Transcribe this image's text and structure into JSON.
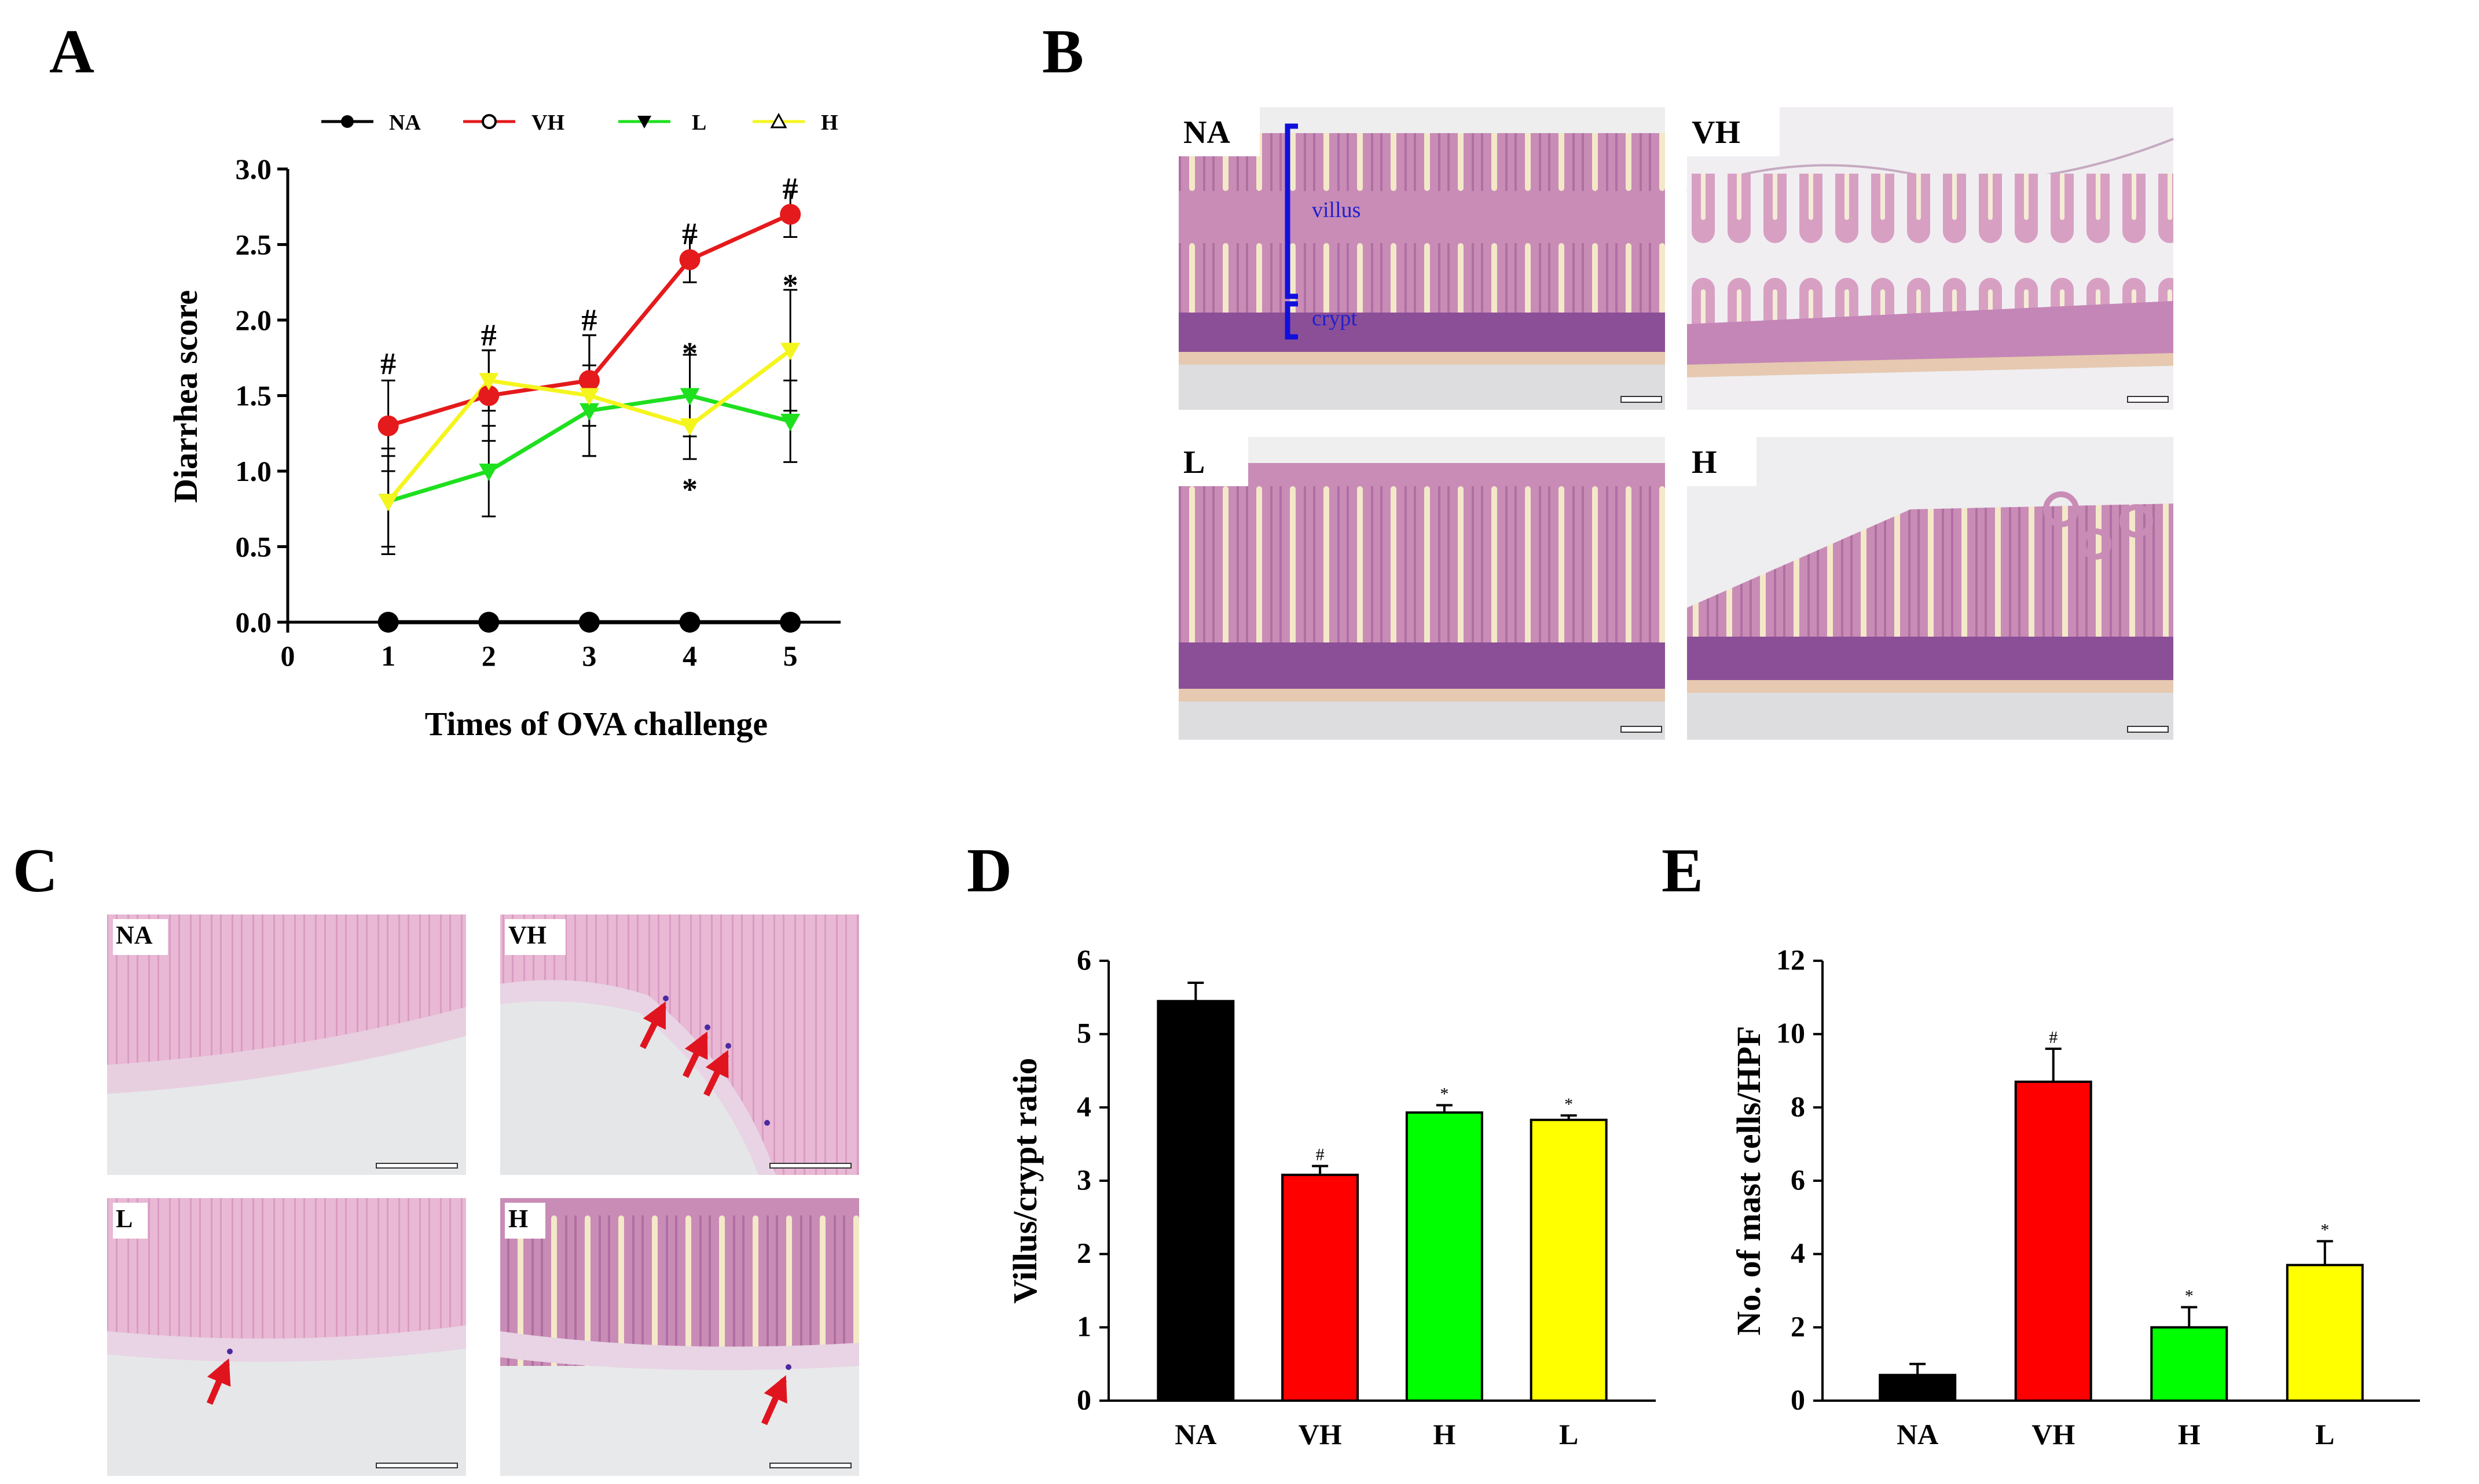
{
  "panel_labels": [
    "A",
    "B",
    "C",
    "D",
    "E"
  ],
  "colors": {
    "black": "#000000",
    "red": "#e41a1c",
    "green": "#1ee01e",
    "yellow": "#f5f51e",
    "bracket": "#1010dd",
    "arrow": "#e0141e",
    "annotation_text": "#2020cc"
  },
  "chart_data": [
    {
      "id": "A",
      "type": "line",
      "xlabel": "Times of OVA challenge",
      "ylabel": "Diarrhea score",
      "xlim": [
        0,
        5.5
      ],
      "ylim": [
        0,
        3.0
      ],
      "xticks": [
        "0",
        "1",
        "2",
        "3",
        "4",
        "5"
      ],
      "yticks": [
        "0.0",
        "0.5",
        "1.0",
        "1.5",
        "2.0",
        "2.5",
        "3.0"
      ],
      "x": [
        1,
        2,
        3,
        4,
        5
      ],
      "legend_position": "top",
      "series": [
        {
          "name": "NA",
          "color": "#000000",
          "marker": "filled-circle",
          "legend_marker": "filled-circle",
          "values": [
            0,
            0,
            0,
            0,
            0
          ],
          "errors": [
            0,
            0,
            0,
            0,
            0
          ]
        },
        {
          "name": "VH",
          "color": "#e41a1c",
          "marker": "filled-circle",
          "legend_marker": "open-circle",
          "values": [
            1.3,
            1.5,
            1.6,
            2.4,
            2.7
          ],
          "errors": [
            0.3,
            0.3,
            0.3,
            0.15,
            0.15
          ]
        },
        {
          "name": "L",
          "color": "#1ee01e",
          "marker": "filled-triangle-down",
          "legend_marker": "filled-triangle-down",
          "values": [
            0.8,
            1.0,
            1.4,
            1.5,
            1.33
          ],
          "errors": [
            0.3,
            0.3,
            0.3,
            0.27,
            0.27
          ]
        },
        {
          "name": "H",
          "color": "#f5f51e",
          "marker": "filled-triangle-down",
          "legend_marker": "open-triangle-up",
          "values": [
            0.8,
            1.6,
            1.5,
            1.3,
            1.8
          ],
          "errors": [
            0.35,
            0.2,
            0.4,
            0.22,
            0.4
          ]
        }
      ],
      "annotations": [
        {
          "text": "#",
          "x": 1,
          "y": 1.71
        },
        {
          "text": "#",
          "x": 2,
          "y": 1.9
        },
        {
          "text": "#",
          "x": 3,
          "y": 2.0
        },
        {
          "text": "#",
          "x": 4,
          "y": 2.57
        },
        {
          "text": "#",
          "x": 5,
          "y": 2.87
        },
        {
          "text": "*",
          "x": 4,
          "y": 1.78
        },
        {
          "text": "*",
          "x": 4,
          "y": 0.88
        },
        {
          "text": "*",
          "x": 5,
          "y": 2.23
        }
      ]
    },
    {
      "id": "D",
      "type": "bar",
      "xlabel": "",
      "ylabel": "Villus/crypt ratio",
      "ylim": [
        0,
        6
      ],
      "yticks": [
        "0",
        "1",
        "2",
        "3",
        "4",
        "5",
        "6"
      ],
      "categories": [
        "NA",
        "VH",
        "H",
        "L"
      ],
      "values": [
        5.45,
        3.08,
        3.93,
        3.83
      ],
      "errors": [
        0.25,
        0.12,
        0.1,
        0.06
      ],
      "bar_colors": [
        "#000000",
        "#ff0000",
        "#00ff00",
        "#ffff00"
      ],
      "annotations": [
        "",
        "#",
        "*",
        "*"
      ]
    },
    {
      "id": "E",
      "type": "bar",
      "xlabel": "",
      "ylabel": "No. of mast cells/HPF",
      "ylim": [
        0,
        12
      ],
      "yticks": [
        "0",
        "2",
        "4",
        "6",
        "8",
        "10",
        "12"
      ],
      "categories": [
        "NA",
        "VH",
        "H",
        "L"
      ],
      "values": [
        0.7,
        8.7,
        2.0,
        3.7
      ],
      "errors": [
        0.3,
        0.9,
        0.55,
        0.65
      ],
      "bar_colors": [
        "#000000",
        "#ff0000",
        "#00ff00",
        "#ffff00"
      ],
      "annotations": [
        "",
        "#",
        "*",
        "*"
      ]
    }
  ],
  "panel_b": {
    "images": [
      {
        "label": "NA",
        "style": "intact villi"
      },
      {
        "label": "VH",
        "style": "damaged villi"
      },
      {
        "label": "L",
        "style": "intact villi"
      },
      {
        "label": "H",
        "style": "partially damaged villi"
      }
    ],
    "annotation_villus": "villus",
    "annotation_crypt": "crypt"
  },
  "panel_c": {
    "images": [
      {
        "label": "NA",
        "arrows": 0
      },
      {
        "label": "VH",
        "arrows": 3
      },
      {
        "label": "L",
        "arrows": 1
      },
      {
        "label": "H",
        "arrows": 1
      }
    ]
  }
}
